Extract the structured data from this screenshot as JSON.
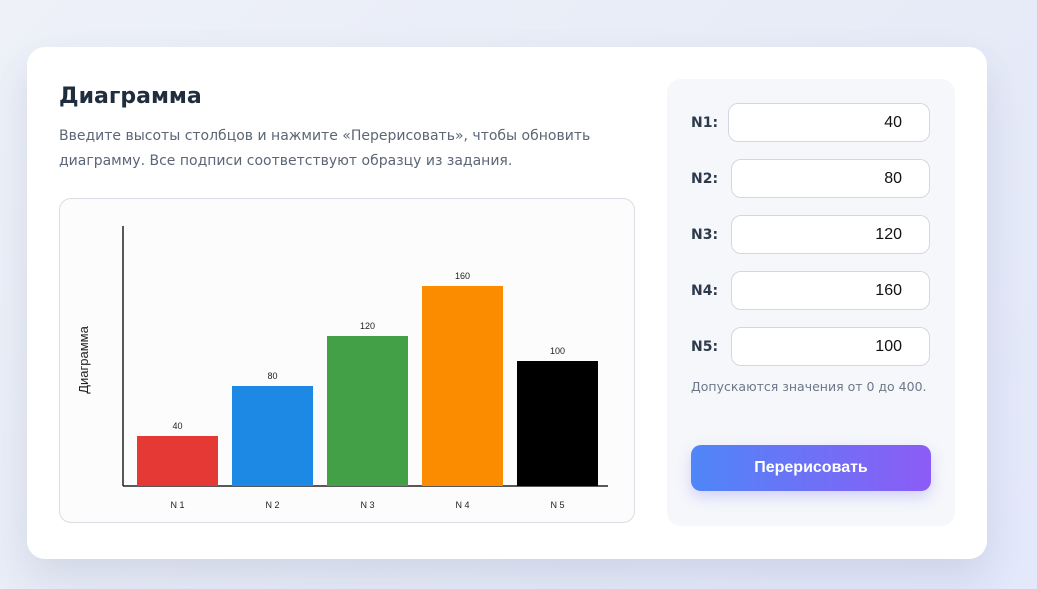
{
  "header": {
    "title": "Диаграмма",
    "description": "Введите высоты столбцов и нажмите «Перерисовать», чтобы обновить диаграмму. Все подписи соответствуют образцу из задания."
  },
  "chart_data": {
    "type": "bar",
    "title": "",
    "xlabel": "",
    "ylabel": "Диаграмма",
    "categories": [
      "N 1",
      "N 2",
      "N 3",
      "N 4",
      "N 5"
    ],
    "values": [
      40,
      80,
      120,
      160,
      100
    ],
    "value_labels": [
      "40",
      "80",
      "120",
      "160",
      "100"
    ],
    "colors": [
      "#e53935",
      "#1e88e5",
      "#43a047",
      "#fb8c00",
      "#000000"
    ],
    "ylim": [
      0,
      200
    ],
    "grid": false,
    "legend": "none"
  },
  "form": {
    "fields": [
      {
        "label": "N1:",
        "value": "40"
      },
      {
        "label": "N2:",
        "value": "80"
      },
      {
        "label": "N3:",
        "value": "120"
      },
      {
        "label": "N4:",
        "value": "160"
      },
      {
        "label": "N5:",
        "value": "100"
      }
    ],
    "hint": "Допускаются значения от 0 до 400.",
    "button_label": "Перерисовать"
  },
  "colors": {
    "button_gradient_start": "#4f86f7",
    "button_gradient_end": "#8c5cf6",
    "title": "#1f2d3d"
  }
}
